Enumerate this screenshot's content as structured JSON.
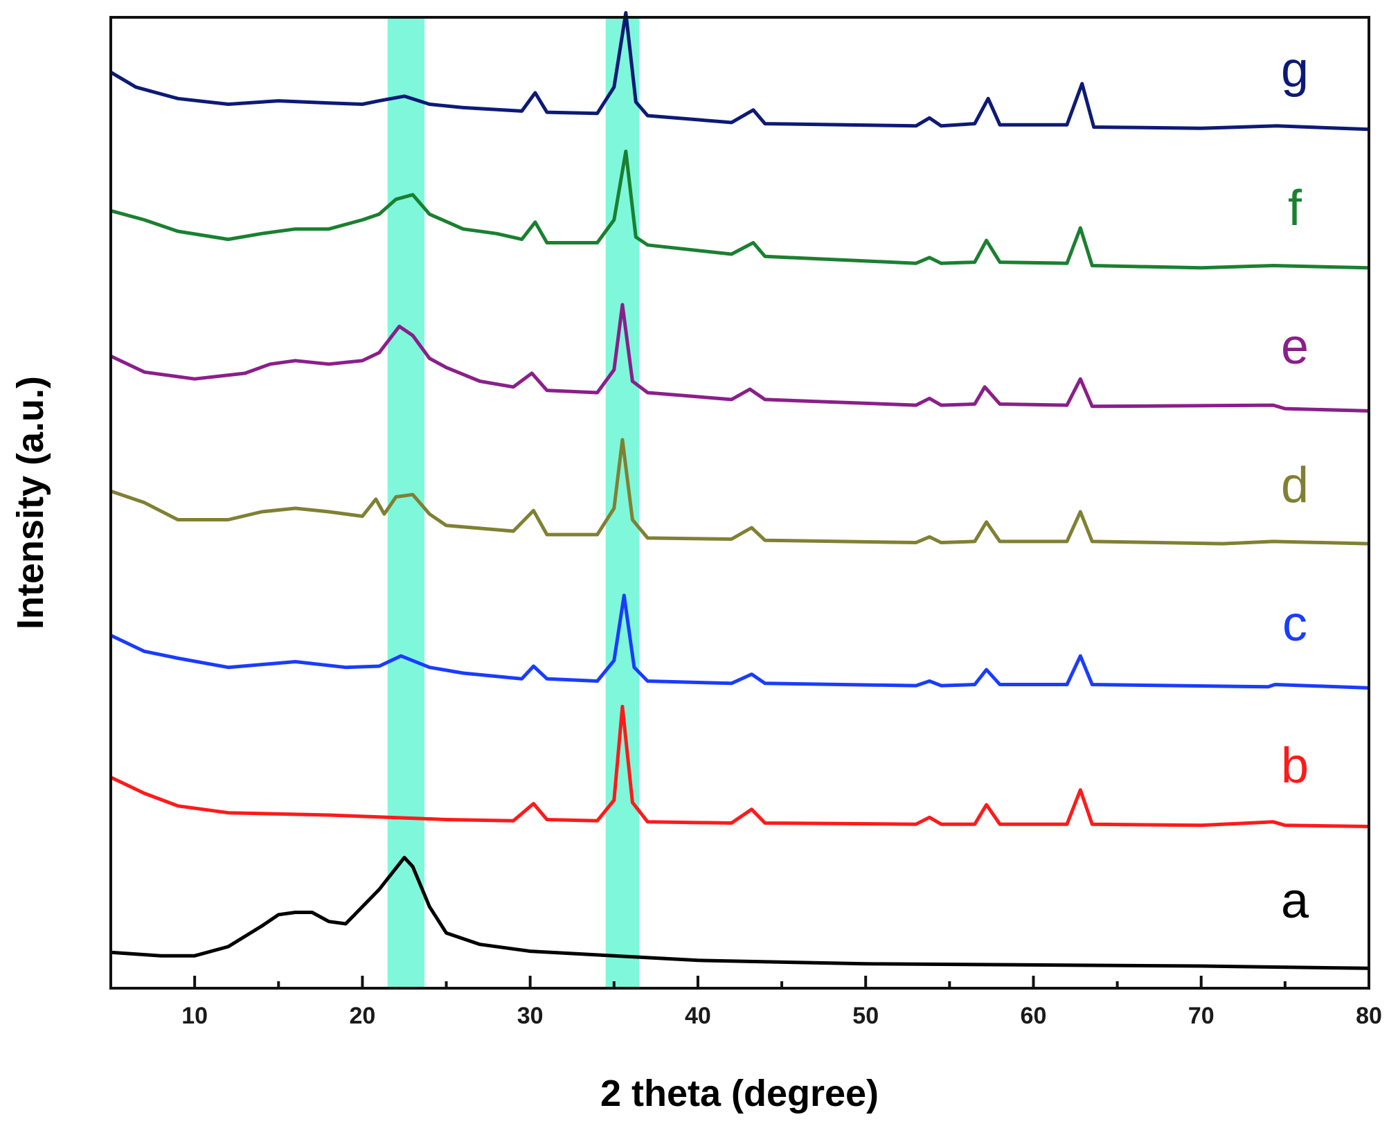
{
  "chart_data": {
    "type": "line",
    "title": "",
    "xlabel": "2 theta (degree)",
    "ylabel": "Intensity (a.u.)",
    "xlim": [
      5,
      80
    ],
    "x_ticks": [
      10,
      20,
      30,
      40,
      50,
      60,
      70,
      80
    ],
    "grid": false,
    "legend": "inline-right",
    "highlight_bands": [
      {
        "from": 21.5,
        "to": 23.7,
        "color": "#7ff7da"
      },
      {
        "from": 34.5,
        "to": 36.5,
        "color": "#7ff7da"
      }
    ],
    "series": [
      {
        "name": "a",
        "color": "#000000",
        "points": [
          [
            5,
            0.15
          ],
          [
            8,
            0.12
          ],
          [
            10,
            0.12
          ],
          [
            12,
            0.2
          ],
          [
            14,
            0.38
          ],
          [
            15,
            0.48
          ],
          [
            16,
            0.5
          ],
          [
            17,
            0.5
          ],
          [
            18,
            0.42
          ],
          [
            19,
            0.4
          ],
          [
            20,
            0.55
          ],
          [
            21,
            0.7
          ],
          [
            21.8,
            0.85
          ],
          [
            22.5,
            0.98
          ],
          [
            23,
            0.9
          ],
          [
            24,
            0.55
          ],
          [
            25,
            0.32
          ],
          [
            27,
            0.22
          ],
          [
            30,
            0.16
          ],
          [
            35,
            0.12
          ],
          [
            40,
            0.08
          ],
          [
            50,
            0.05
          ],
          [
            60,
            0.04
          ],
          [
            70,
            0.03
          ],
          [
            80,
            0.01
          ]
        ]
      },
      {
        "name": "b",
        "color": "#ff1a1a",
        "points": [
          [
            5,
            0.5
          ],
          [
            7,
            0.36
          ],
          [
            9,
            0.25
          ],
          [
            12,
            0.19
          ],
          [
            18,
            0.17
          ],
          [
            25,
            0.13
          ],
          [
            29,
            0.12
          ],
          [
            30.2,
            0.27
          ],
          [
            31,
            0.13
          ],
          [
            34,
            0.12
          ],
          [
            35,
            0.3
          ],
          [
            35.5,
            1.12
          ],
          [
            36.1,
            0.28
          ],
          [
            37,
            0.11
          ],
          [
            42,
            0.1
          ],
          [
            43.2,
            0.22
          ],
          [
            44,
            0.1
          ],
          [
            53,
            0.09
          ],
          [
            53.8,
            0.15
          ],
          [
            54.5,
            0.09
          ],
          [
            56.5,
            0.09
          ],
          [
            57.2,
            0.26
          ],
          [
            58,
            0.09
          ],
          [
            62,
            0.09
          ],
          [
            62.8,
            0.39
          ],
          [
            63.5,
            0.09
          ],
          [
            70,
            0.08
          ],
          [
            74.3,
            0.11
          ],
          [
            75,
            0.08
          ],
          [
            80,
            0.07
          ]
        ]
      },
      {
        "name": "c",
        "color": "#1a3cff",
        "points": [
          [
            5,
            0.5
          ],
          [
            7,
            0.36
          ],
          [
            9,
            0.3
          ],
          [
            12,
            0.22
          ],
          [
            16,
            0.27
          ],
          [
            19,
            0.22
          ],
          [
            21,
            0.23
          ],
          [
            22.3,
            0.32
          ],
          [
            24,
            0.22
          ],
          [
            26,
            0.17
          ],
          [
            29.5,
            0.12
          ],
          [
            30.2,
            0.23
          ],
          [
            31,
            0.12
          ],
          [
            34,
            0.1
          ],
          [
            35,
            0.28
          ],
          [
            35.6,
            0.85
          ],
          [
            36.2,
            0.22
          ],
          [
            37,
            0.1
          ],
          [
            42,
            0.08
          ],
          [
            43.2,
            0.16
          ],
          [
            44,
            0.08
          ],
          [
            53,
            0.06
          ],
          [
            53.8,
            0.1
          ],
          [
            54.5,
            0.06
          ],
          [
            56.5,
            0.07
          ],
          [
            57.2,
            0.2
          ],
          [
            58,
            0.07
          ],
          [
            62,
            0.07
          ],
          [
            62.8,
            0.32
          ],
          [
            63.5,
            0.07
          ],
          [
            74,
            0.05
          ],
          [
            74.4,
            0.07
          ],
          [
            80,
            0.04
          ]
        ]
      },
      {
        "name": "d",
        "color": "#808033",
        "points": [
          [
            5,
            0.55
          ],
          [
            7,
            0.45
          ],
          [
            9,
            0.3
          ],
          [
            12,
            0.3
          ],
          [
            14,
            0.37
          ],
          [
            16,
            0.4
          ],
          [
            18,
            0.37
          ],
          [
            20,
            0.33
          ],
          [
            20.8,
            0.48
          ],
          [
            21.3,
            0.35
          ],
          [
            22,
            0.5
          ],
          [
            23,
            0.52
          ],
          [
            24,
            0.35
          ],
          [
            25,
            0.25
          ],
          [
            29,
            0.2
          ],
          [
            30.2,
            0.38
          ],
          [
            31,
            0.17
          ],
          [
            34,
            0.17
          ],
          [
            35,
            0.4
          ],
          [
            35.5,
            1.0
          ],
          [
            36.1,
            0.3
          ],
          [
            37,
            0.14
          ],
          [
            42,
            0.13
          ],
          [
            43.2,
            0.23
          ],
          [
            44,
            0.12
          ],
          [
            53,
            0.1
          ],
          [
            53.8,
            0.15
          ],
          [
            54.5,
            0.1
          ],
          [
            56.5,
            0.11
          ],
          [
            57.2,
            0.28
          ],
          [
            58,
            0.11
          ],
          [
            62,
            0.11
          ],
          [
            62.8,
            0.37
          ],
          [
            63.5,
            0.11
          ],
          [
            71.3,
            0.09
          ],
          [
            74.3,
            0.11
          ],
          [
            80,
            0.09
          ]
        ]
      },
      {
        "name": "e",
        "color": "#8a1f8a",
        "points": [
          [
            5,
            0.52
          ],
          [
            7,
            0.38
          ],
          [
            10,
            0.32
          ],
          [
            13,
            0.37
          ],
          [
            14.5,
            0.45
          ],
          [
            16,
            0.48
          ],
          [
            18,
            0.45
          ],
          [
            20,
            0.48
          ],
          [
            21,
            0.55
          ],
          [
            22.2,
            0.78
          ],
          [
            23,
            0.7
          ],
          [
            24,
            0.5
          ],
          [
            25,
            0.42
          ],
          [
            27,
            0.3
          ],
          [
            29,
            0.25
          ],
          [
            30.1,
            0.37
          ],
          [
            31,
            0.22
          ],
          [
            34,
            0.2
          ],
          [
            35,
            0.4
          ],
          [
            35.5,
            0.97
          ],
          [
            36.1,
            0.3
          ],
          [
            37,
            0.2
          ],
          [
            42,
            0.14
          ],
          [
            43.1,
            0.23
          ],
          [
            44,
            0.14
          ],
          [
            53,
            0.09
          ],
          [
            53.8,
            0.15
          ],
          [
            54.5,
            0.09
          ],
          [
            56.5,
            0.1
          ],
          [
            57.1,
            0.25
          ],
          [
            58,
            0.1
          ],
          [
            62,
            0.09
          ],
          [
            62.8,
            0.32
          ],
          [
            63.5,
            0.08
          ],
          [
            74.3,
            0.09
          ],
          [
            75,
            0.06
          ],
          [
            80,
            0.04
          ]
        ]
      },
      {
        "name": "f",
        "color": "#1a8030",
        "points": [
          [
            5,
            0.58
          ],
          [
            7,
            0.5
          ],
          [
            9,
            0.4
          ],
          [
            12,
            0.33
          ],
          [
            14,
            0.38
          ],
          [
            16,
            0.42
          ],
          [
            18,
            0.42
          ],
          [
            20,
            0.5
          ],
          [
            21,
            0.55
          ],
          [
            22,
            0.68
          ],
          [
            23,
            0.72
          ],
          [
            24,
            0.55
          ],
          [
            26,
            0.42
          ],
          [
            28,
            0.38
          ],
          [
            29.5,
            0.33
          ],
          [
            30.3,
            0.48
          ],
          [
            31,
            0.3
          ],
          [
            34,
            0.3
          ],
          [
            35,
            0.5
          ],
          [
            35.7,
            1.1
          ],
          [
            36.3,
            0.35
          ],
          [
            37,
            0.28
          ],
          [
            42,
            0.2
          ],
          [
            43.3,
            0.3
          ],
          [
            44,
            0.18
          ],
          [
            50,
            0.14
          ],
          [
            53,
            0.12
          ],
          [
            53.8,
            0.17
          ],
          [
            54.5,
            0.12
          ],
          [
            56.5,
            0.13
          ],
          [
            57.2,
            0.32
          ],
          [
            58,
            0.13
          ],
          [
            62,
            0.12
          ],
          [
            62.8,
            0.43
          ],
          [
            63.5,
            0.1
          ],
          [
            70,
            0.08
          ],
          [
            74.3,
            0.1
          ],
          [
            80,
            0.08
          ]
        ]
      },
      {
        "name": "g",
        "color": "#0d1a75",
        "points": [
          [
            5,
            0.58
          ],
          [
            6.5,
            0.45
          ],
          [
            9,
            0.35
          ],
          [
            12,
            0.3
          ],
          [
            15,
            0.33
          ],
          [
            18,
            0.31
          ],
          [
            20,
            0.3
          ],
          [
            21,
            0.33
          ],
          [
            22.5,
            0.37
          ],
          [
            24,
            0.3
          ],
          [
            26,
            0.27
          ],
          [
            29.5,
            0.24
          ],
          [
            30.3,
            0.4
          ],
          [
            31,
            0.23
          ],
          [
            34,
            0.22
          ],
          [
            35,
            0.45
          ],
          [
            35.7,
            1.1
          ],
          [
            36.3,
            0.32
          ],
          [
            37,
            0.2
          ],
          [
            42,
            0.14
          ],
          [
            43.3,
            0.25
          ],
          [
            44,
            0.13
          ],
          [
            53,
            0.11
          ],
          [
            53.8,
            0.18
          ],
          [
            54.5,
            0.11
          ],
          [
            56.5,
            0.13
          ],
          [
            57.3,
            0.35
          ],
          [
            58,
            0.12
          ],
          [
            62,
            0.12
          ],
          [
            62.9,
            0.48
          ],
          [
            63.6,
            0.1
          ],
          [
            70,
            0.09
          ],
          [
            74.5,
            0.11
          ],
          [
            80,
            0.08
          ]
        ]
      }
    ]
  }
}
